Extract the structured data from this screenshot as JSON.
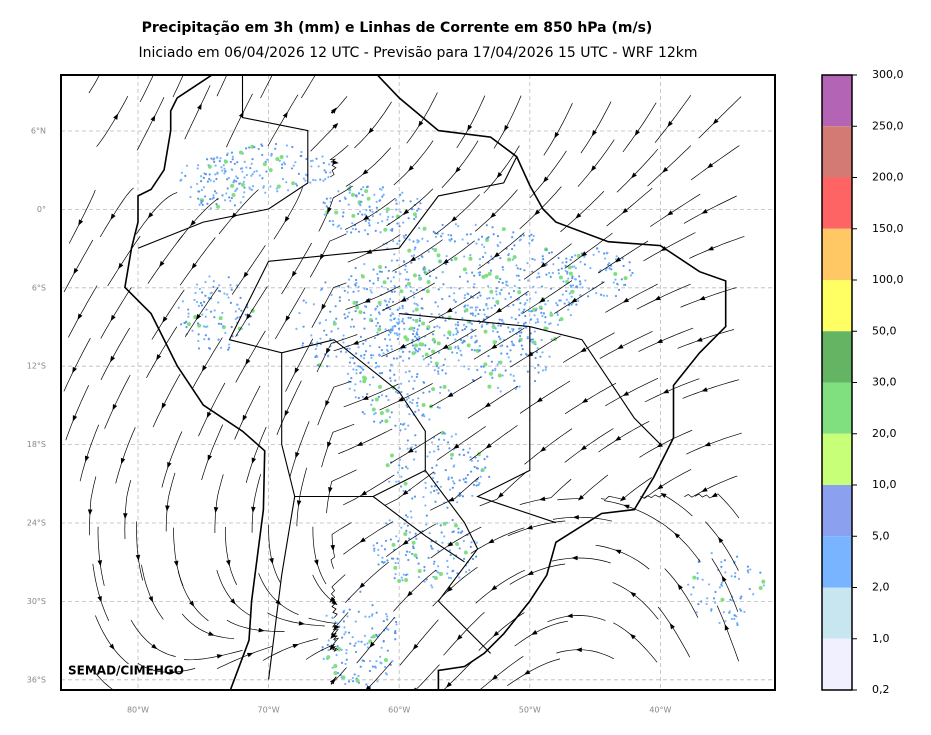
{
  "header": {
    "title": "Precipitação em 3h (mm) e Linhas de Corrente em 850 hPa (m/s)",
    "subtitle": "Iniciado em 06/04/2026 12 UTC - Previsão para 17/04/2026 15 UTC - WRF 12km"
  },
  "map": {
    "lat_labels": [
      "6°N",
      "0°",
      "6°S",
      "12°S",
      "18°S",
      "24°S",
      "30°S",
      "36°S"
    ],
    "lon_labels": [
      "80°W",
      "70°W",
      "60°W",
      "50°W",
      "40°W"
    ],
    "watermark": "SEMAD/CIMEHGO"
  },
  "colorbar": {
    "labels": [
      "300,0",
      "250,0",
      "200,0",
      "150,0",
      "100,0",
      "50,0",
      "30,0",
      "20,0",
      "10,0",
      "5,0",
      "2,0",
      "1,0",
      "0,2"
    ],
    "colors": [
      "#b464b4",
      "#d47a74",
      "#ff6464",
      "#ffc864",
      "#ffff64",
      "#64b464",
      "#80e080",
      "#c8ff78",
      "#8ca0f0",
      "#78b4ff",
      "#c8e6f0",
      "#f0f0ff"
    ]
  }
}
